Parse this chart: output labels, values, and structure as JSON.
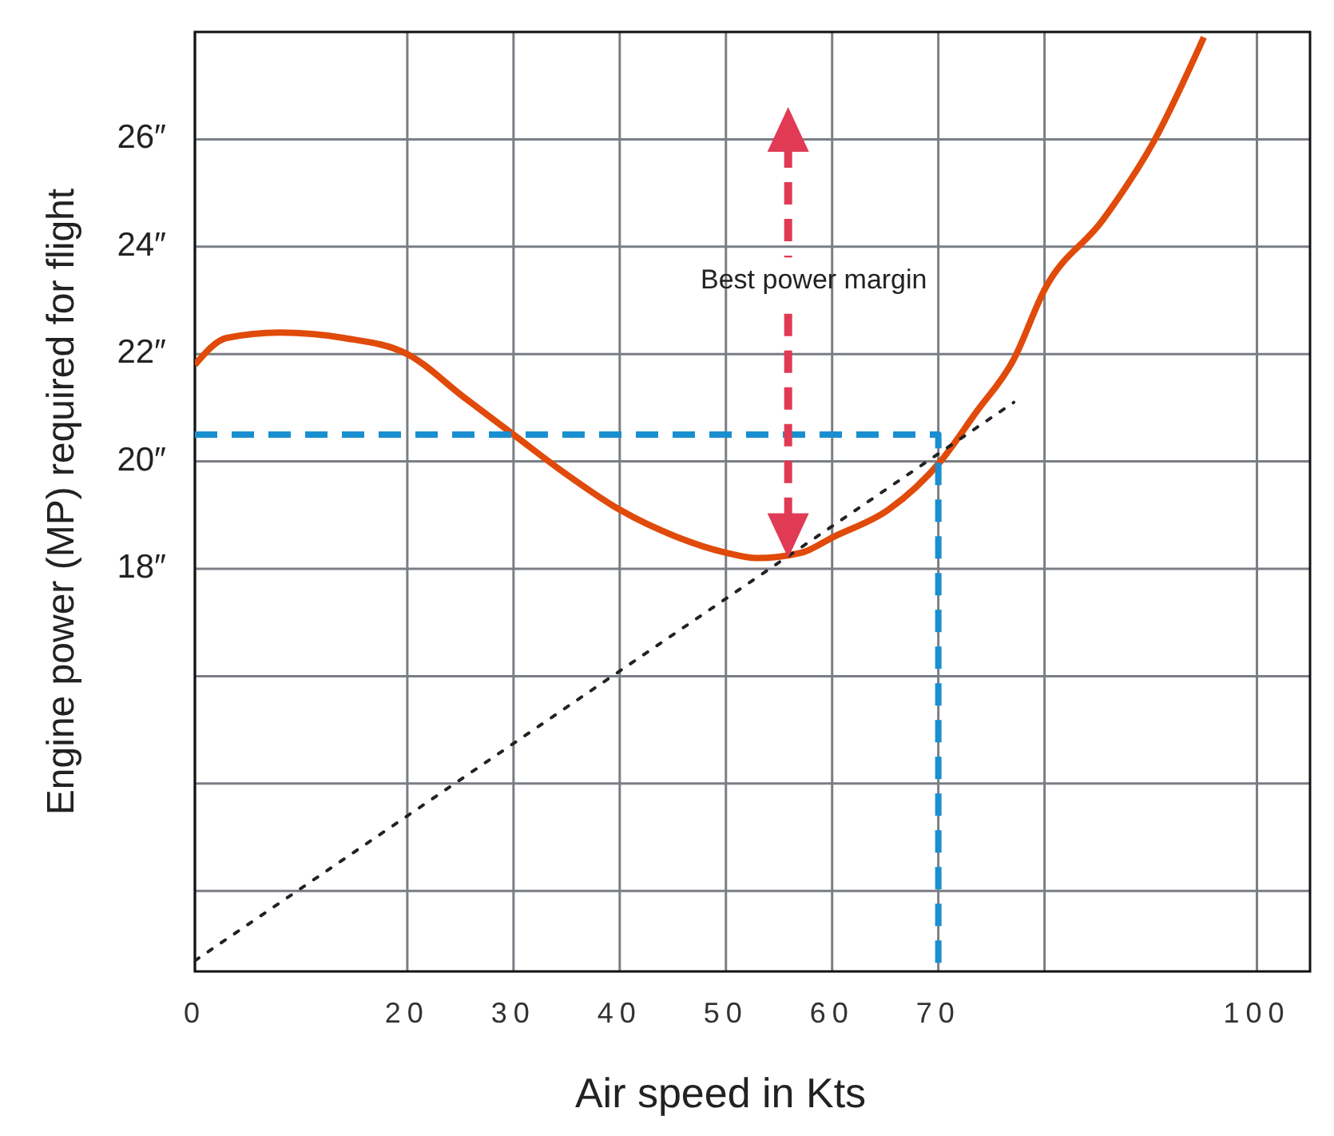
{
  "chart_data": {
    "type": "line",
    "xlabel": "Air speed in Kts",
    "ylabel": "Engine power (MP) required for flight",
    "xlim": [
      0,
      105
    ],
    "ylim": [
      10.5,
      28
    ],
    "xticks": [
      0,
      20,
      30,
      40,
      50,
      60,
      70,
      {
        "value": 80,
        "label": null
      },
      100
    ],
    "yticks": [
      {
        "value": 12,
        "label": null
      },
      {
        "value": 14,
        "label": null
      },
      {
        "value": 16,
        "label": null
      },
      {
        "value": 18,
        "label": "18″"
      },
      {
        "value": 20,
        "label": "20″"
      },
      {
        "value": 22,
        "label": "22″"
      },
      {
        "value": 24,
        "label": "24″"
      },
      {
        "value": 26,
        "label": "26″"
      }
    ],
    "grid": true,
    "series": [
      {
        "color": "#e04a0a",
        "line_style": "solid",
        "x": [
          0,
          3,
          8,
          14,
          20,
          25.3,
          30,
          34.7,
          40,
          45.3,
          50,
          52.9,
          57.1,
          60.2,
          65.3,
          70.2,
          73.5,
          77.1,
          80,
          85.5,
          90.4,
          95
        ],
        "values": [
          21.8,
          22.3,
          22.4,
          22.3,
          22.0,
          21.2,
          20.5,
          19.8,
          19.1,
          18.6,
          18.3,
          18.2,
          18.3,
          18.6,
          19.1,
          20.0,
          20.9,
          21.9,
          23.2,
          24.5,
          26.0,
          27.9
        ]
      },
      {
        "color": "#222222",
        "line_style": "dotted",
        "x": [
          0,
          77.1
        ],
        "values": [
          10.7,
          21.1
        ]
      },
      {
        "color": "#1a8fd0",
        "line_style": "dashed",
        "x": [
          0,
          70,
          70
        ],
        "values": [
          20.5,
          20.5,
          10.6
        ]
      }
    ],
    "annotations": [
      "Best power margin"
    ]
  }
}
